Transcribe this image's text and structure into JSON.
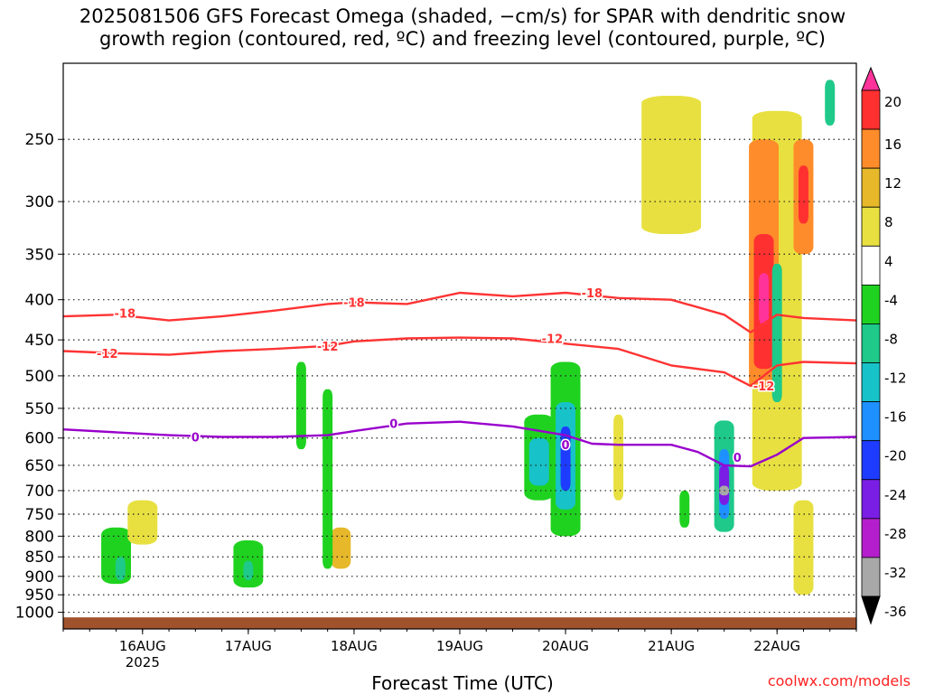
{
  "title": {
    "line1": "2025081506 GFS Forecast Omega (shaded, −cm/s) for SPAR with dendritic snow",
    "line2": "growth region (contoured, red, ºC) and freezing level (contoured, purple, ºC)"
  },
  "xlabel": "Forecast Time (UTC)",
  "credit": "coolwx.com/models",
  "chart_data": {
    "type": "heatmap",
    "ylabel": "",
    "y_scale": "log",
    "y_inverted": true,
    "ylim": [
      1050,
      200
    ],
    "y_ticks": [
      250,
      300,
      350,
      400,
      450,
      500,
      550,
      600,
      650,
      700,
      750,
      800,
      850,
      900,
      950,
      1000
    ],
    "xlim": [
      "2025-08-15T06",
      "2025-08-22T18"
    ],
    "x_ticks": [
      {
        "value": "2025-08-16T00",
        "label": "16AUG",
        "sublabel": "2025"
      },
      {
        "value": "2025-08-17T00",
        "label": "17AUG"
      },
      {
        "value": "2025-08-18T00",
        "label": "18AUG"
      },
      {
        "value": "2025-08-19T00",
        "label": "19AUG"
      },
      {
        "value": "2025-08-20T00",
        "label": "20AUG"
      },
      {
        "value": "2025-08-21T00",
        "label": "21AUG"
      },
      {
        "value": "2025-08-22T00",
        "label": "22AUG"
      }
    ],
    "grid": true,
    "ground_color": "#a0522d",
    "colorbar": {
      "labels": [
        "20",
        "16",
        "12",
        "8",
        "4",
        "-4",
        "-8",
        "-12",
        "-16",
        "-20",
        "-24",
        "-28",
        "-32",
        "-36"
      ],
      "levels": [
        {
          "from": 16,
          "to": 20,
          "color": "#ff3030"
        },
        {
          "from": 12,
          "to": 16,
          "color": "#ff8c2a"
        },
        {
          "from": 8,
          "to": 12,
          "color": "#e6b82a"
        },
        {
          "from": 4,
          "to": 8,
          "color": "#e8e040"
        },
        {
          "from": -4,
          "to": 4,
          "color": "#ffffff"
        },
        {
          "from": -8,
          "to": -4,
          "color": "#1fd21f"
        },
        {
          "from": -12,
          "to": -8,
          "color": "#1ec98a"
        },
        {
          "from": -16,
          "to": -12,
          "color": "#17c2c8"
        },
        {
          "from": -20,
          "to": -16,
          "color": "#1e90ff"
        },
        {
          "from": -24,
          "to": -20,
          "color": "#1e3cff"
        },
        {
          "from": -28,
          "to": -24,
          "color": "#7a1ee6"
        },
        {
          "from": -32,
          "to": -28,
          "color": "#b41ecc"
        },
        {
          "from": -36,
          "to": -32,
          "color": "#a8a8a8"
        }
      ],
      "above_color": "#ff3399",
      "below_color": "#000000"
    },
    "contours": [
      {
        "level": "-18",
        "color": "#ff3333",
        "x": [
          "2025-08-15T06",
          "2025-08-15T18",
          "2025-08-16T06",
          "2025-08-16T18",
          "2025-08-17T06",
          "2025-08-17T18",
          "2025-08-18T00",
          "2025-08-18T12",
          "2025-08-19T00",
          "2025-08-19T12",
          "2025-08-20T00",
          "2025-08-20T12",
          "2025-08-21T00",
          "2025-08-21T12",
          "2025-08-21T18",
          "2025-08-22T00",
          "2025-08-22T06",
          "2025-08-22T18"
        ],
        "y": [
          420,
          418,
          425,
          420,
          413,
          405,
          403,
          405,
          392,
          396,
          392,
          398,
          400,
          418,
          440,
          418,
          422,
          425
        ]
      },
      {
        "level": "-12",
        "color": "#ff3333",
        "x": [
          "2025-08-15T06",
          "2025-08-15T18",
          "2025-08-16T06",
          "2025-08-16T18",
          "2025-08-17T06",
          "2025-08-17T18",
          "2025-08-18T00",
          "2025-08-18T12",
          "2025-08-19T00",
          "2025-08-19T12",
          "2025-08-20T00",
          "2025-08-20T12",
          "2025-08-21T00",
          "2025-08-21T12",
          "2025-08-21T18",
          "2025-08-22T00",
          "2025-08-22T06",
          "2025-08-22T18"
        ],
        "y": [
          465,
          468,
          470,
          465,
          462,
          458,
          452,
          448,
          447,
          448,
          455,
          462,
          485,
          495,
          515,
          485,
          480,
          482
        ]
      },
      {
        "level": "0",
        "color": "#9900cc",
        "x": [
          "2025-08-15T06",
          "2025-08-15T18",
          "2025-08-16T06",
          "2025-08-16T18",
          "2025-08-17T06",
          "2025-08-17T18",
          "2025-08-18T00",
          "2025-08-18T12",
          "2025-08-19T00",
          "2025-08-19T12",
          "2025-08-20T00",
          "2025-08-20T06",
          "2025-08-20T12",
          "2025-08-21T00",
          "2025-08-21T06",
          "2025-08-21T12",
          "2025-08-21T18",
          "2025-08-22T00",
          "2025-08-22T06",
          "2025-08-22T18"
        ],
        "y": [
          585,
          590,
          595,
          598,
          598,
          595,
          588,
          575,
          572,
          580,
          595,
          610,
          612,
          612,
          625,
          650,
          652,
          630,
          600,
          598
        ]
      }
    ],
    "contour_labels": [
      {
        "text": "-18",
        "x": "2025-08-15T20",
        "y": 416
      },
      {
        "text": "-18",
        "x": "2025-08-18T00",
        "y": 403
      },
      {
        "text": "-18",
        "x": "2025-08-20T06",
        "y": 392
      },
      {
        "text": "-12",
        "x": "2025-08-15T16",
        "y": 468
      },
      {
        "text": "-12",
        "x": "2025-08-17T18",
        "y": 458
      },
      {
        "text": "-12",
        "x": "2025-08-19T21",
        "y": 448
      },
      {
        "text": "-12",
        "x": "2025-08-21T21",
        "y": 515
      },
      {
        "text": "0",
        "x": "2025-08-16T12",
        "y": 598
      },
      {
        "text": "0",
        "x": "2025-08-18T09",
        "y": 575
      },
      {
        "text": "0",
        "x": "2025-08-20T00",
        "y": 612
      },
      {
        "text": "0",
        "x": "2025-08-21T15",
        "y": 635
      }
    ],
    "shaded_regions": [
      {
        "x": "2025-08-15T18",
        "ylo": 780,
        "yhi": 920,
        "w": 3,
        "value": -8
      },
      {
        "x": "2025-08-15T19",
        "ylo": 850,
        "yhi": 910,
        "w": 1,
        "value": -12
      },
      {
        "x": "2025-08-16T00",
        "ylo": 720,
        "yhi": 820,
        "w": 3,
        "value": 6
      },
      {
        "x": "2025-08-17T00",
        "ylo": 810,
        "yhi": 930,
        "w": 3,
        "value": -8
      },
      {
        "x": "2025-08-17T00",
        "ylo": 860,
        "yhi": 910,
        "w": 1,
        "value": -12
      },
      {
        "x": "2025-08-17T21",
        "ylo": 780,
        "yhi": 880,
        "w": 2,
        "value": 10
      },
      {
        "x": "2025-08-17T12",
        "ylo": 480,
        "yhi": 620,
        "w": 1,
        "value": -8
      },
      {
        "x": "2025-08-17T18",
        "ylo": 520,
        "yhi": 880,
        "w": 1,
        "value": -8
      },
      {
        "x": "2025-08-19T18",
        "ylo": 560,
        "yhi": 720,
        "w": 3,
        "value": -8
      },
      {
        "x": "2025-08-19T18",
        "ylo": 600,
        "yhi": 690,
        "w": 2,
        "value": -14
      },
      {
        "x": "2025-08-20T00",
        "ylo": 480,
        "yhi": 800,
        "w": 3,
        "value": -8
      },
      {
        "x": "2025-08-20T00",
        "ylo": 540,
        "yhi": 740,
        "w": 2,
        "value": -14
      },
      {
        "x": "2025-08-20T00",
        "ylo": 580,
        "yhi": 700,
        "w": 1,
        "value": -22
      },
      {
        "x": "2025-08-21T12",
        "ylo": 570,
        "yhi": 790,
        "w": 2,
        "value": -10
      },
      {
        "x": "2025-08-21T12",
        "ylo": 620,
        "yhi": 760,
        "w": 1,
        "value": -18
      },
      {
        "x": "2025-08-21T12",
        "ylo": 650,
        "yhi": 730,
        "w": 1,
        "value": -26
      },
      {
        "x": "2025-08-21T12",
        "ylo": 690,
        "yhi": 710,
        "w": 1,
        "value": -34
      },
      {
        "x": "2025-08-21T03",
        "ylo": 700,
        "yhi": 780,
        "w": 1,
        "value": -8
      },
      {
        "x": "2025-08-21T00",
        "ylo": 220,
        "yhi": 330,
        "w": 6,
        "value": 6
      },
      {
        "x": "2025-08-22T00",
        "ylo": 230,
        "yhi": 700,
        "w": 5,
        "value": 6
      },
      {
        "x": "2025-08-21T21",
        "ylo": 250,
        "yhi": 520,
        "w": 3,
        "value": 12
      },
      {
        "x": "2025-08-21T21",
        "ylo": 330,
        "yhi": 490,
        "w": 2,
        "value": 16
      },
      {
        "x": "2025-08-21T21",
        "ylo": 370,
        "yhi": 430,
        "w": 1,
        "value": 21
      },
      {
        "x": "2025-08-22T06",
        "ylo": 250,
        "yhi": 350,
        "w": 2,
        "value": 14
      },
      {
        "x": "2025-08-22T06",
        "ylo": 270,
        "yhi": 320,
        "w": 1,
        "value": 17
      },
      {
        "x": "2025-08-22T00",
        "ylo": 360,
        "yhi": 540,
        "w": 1,
        "value": -10
      },
      {
        "x": "2025-08-22T12",
        "ylo": 210,
        "yhi": 240,
        "w": 1,
        "value": -12
      },
      {
        "x": "2025-08-20T12",
        "ylo": 560,
        "yhi": 720,
        "w": 1,
        "value": 6
      },
      {
        "x": "2025-08-22T06",
        "ylo": 720,
        "yhi": 950,
        "w": 2,
        "value": 6
      }
    ]
  }
}
